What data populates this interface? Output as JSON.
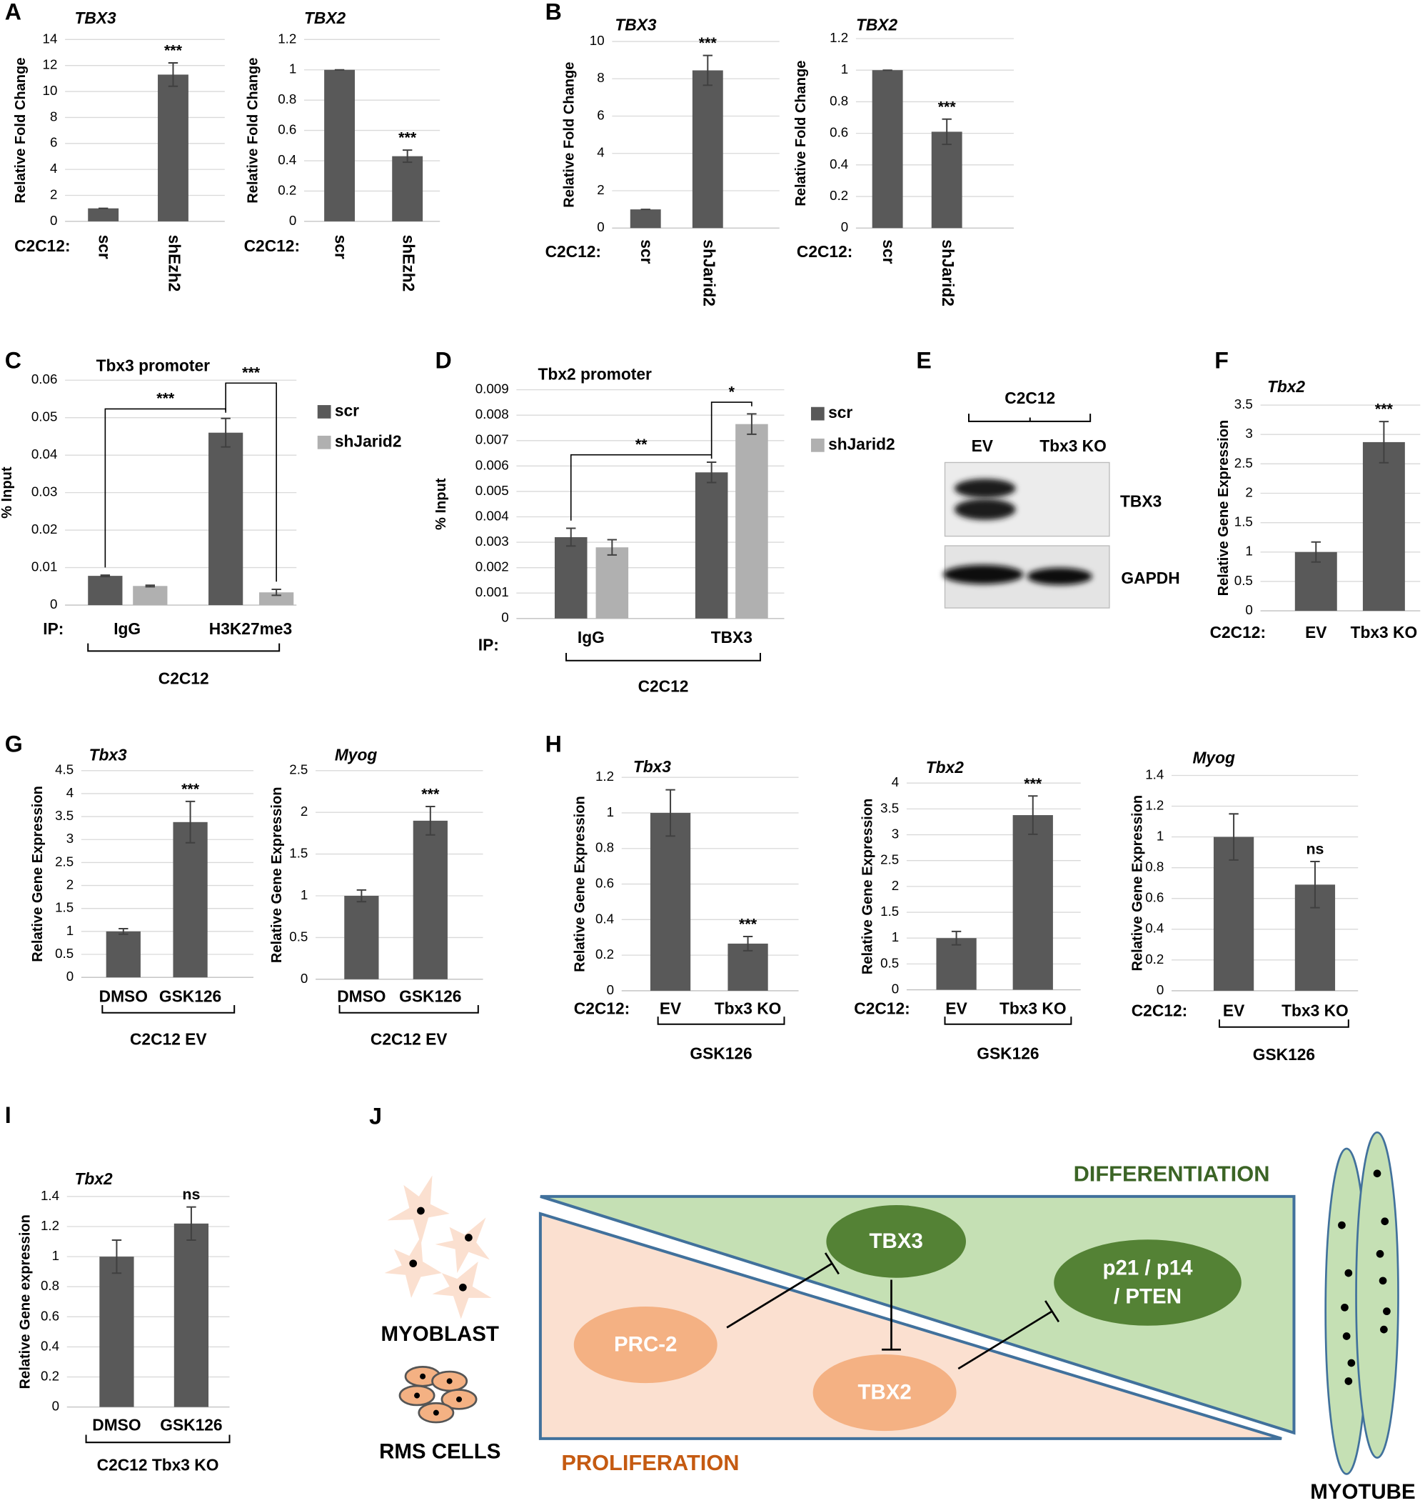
{
  "chart_data": [
    {
      "type": "bar",
      "panel": "A",
      "title": "TBX3",
      "y_label": "Relative Fold Change",
      "category_label": "C2C12:",
      "categories": [
        "scr",
        "shEzh2"
      ],
      "series": [
        {
          "color": "#595959",
          "values": [
            1,
            11.3
          ],
          "errors": [
            0,
            0.9
          ]
        }
      ],
      "significance": [
        null,
        "***"
      ],
      "ylim": [
        0,
        14
      ],
      "yticks": [
        0,
        2,
        4,
        6,
        8,
        10,
        12,
        14
      ],
      "grid": true
    },
    {
      "type": "bar",
      "title": "TBX2",
      "y_label": "Relative Fold Change",
      "category_label": "C2C12:",
      "categories": [
        "scr",
        "shEzh2"
      ],
      "series": [
        {
          "color": "#595959",
          "values": [
            1,
            0.43
          ],
          "errors": [
            0,
            0.04
          ]
        }
      ],
      "significance": [
        null,
        "***"
      ],
      "ylim": [
        0,
        1.2
      ],
      "yticks": [
        0,
        0.2,
        0.4,
        0.6,
        0.8,
        1,
        1.2
      ],
      "grid": true
    },
    {
      "type": "bar",
      "panel": "B",
      "title": "TBX3",
      "y_label": "Relative Fold Change",
      "category_label": "C2C12:",
      "categories": [
        "scr",
        "shJarid2"
      ],
      "series": [
        {
          "color": "#595959",
          "values": [
            1,
            8.45
          ],
          "errors": [
            0,
            0.8
          ]
        }
      ],
      "significance": [
        null,
        "***"
      ],
      "ylim": [
        0,
        10
      ],
      "yticks": [
        0,
        2,
        4,
        6,
        8,
        10
      ],
      "grid": true
    },
    {
      "type": "bar",
      "title": "TBX2",
      "y_label": "Relative Fold Change",
      "category_label": "C2C12:",
      "categories": [
        "scr",
        "shJarid2"
      ],
      "series": [
        {
          "color": "#595959",
          "values": [
            1,
            0.61
          ],
          "errors": [
            0,
            0.08
          ]
        }
      ],
      "significance": [
        null,
        "***"
      ],
      "ylim": [
        0,
        1.2
      ],
      "yticks": [
        0,
        0.2,
        0.4,
        0.6,
        0.8,
        1,
        1.2
      ],
      "grid": true
    },
    {
      "type": "bar",
      "panel": "C",
      "title": "Tbx3 promoter",
      "y_label": "% Input",
      "category_label": "IP:",
      "categories": [
        "IgG",
        "H3K27me3"
      ],
      "series": [
        {
          "name": "scr",
          "color": "#595959",
          "values": [
            0.0078,
            0.046
          ],
          "errors": [
            0.0002,
            0.0038
          ]
        },
        {
          "name": "shJarid2",
          "color": "#b0b0b0",
          "values": [
            0.0051,
            0.0034
          ],
          "errors": [
            0.0002,
            0.0008
          ]
        }
      ],
      "bracket_labels": [
        "***",
        "***"
      ],
      "group_label": "C2C12",
      "ylim": [
        0,
        0.06
      ],
      "yticks": [
        0,
        0.01,
        0.02,
        0.03,
        0.04,
        0.05,
        0.06
      ],
      "grid": true
    },
    {
      "type": "bar",
      "panel": "D",
      "title": "Tbx2 promoter",
      "y_label": "% Input",
      "category_label": "IP:",
      "categories": [
        "IgG",
        "TBX3"
      ],
      "series": [
        {
          "name": "scr",
          "color": "#595959",
          "values": [
            0.0032,
            0.00575
          ],
          "errors": [
            0.00035,
            0.0004
          ]
        },
        {
          "name": "shJarid2",
          "color": "#b0b0b0",
          "values": [
            0.0028,
            0.00765
          ],
          "errors": [
            0.0003,
            0.0004
          ]
        }
      ],
      "bracket_labels": [
        "**",
        "*"
      ],
      "group_label": "C2C12",
      "ylim": [
        0,
        0.009
      ],
      "yticks": [
        0,
        0.001,
        0.002,
        0.003,
        0.004,
        0.005,
        0.006,
        0.007,
        0.008,
        0.009
      ],
      "grid": true
    },
    {
      "type": "bar",
      "panel": "F",
      "title": "Tbx2",
      "y_label": "Relative Gene Expression",
      "category_label": "C2C12:",
      "categories": [
        "EV",
        "Tbx3 KO"
      ],
      "series": [
        {
          "color": "#595959",
          "values": [
            1,
            2.87
          ],
          "errors": [
            0.17,
            0.35
          ]
        }
      ],
      "significance": [
        null,
        "***"
      ],
      "ylim": [
        0,
        3.5
      ],
      "yticks": [
        0,
        0.5,
        1,
        1.5,
        2,
        2.5,
        3,
        3.5
      ],
      "grid": true
    },
    {
      "type": "bar",
      "panel": "G",
      "title": "Tbx3",
      "y_label": "Relative Gene Expression",
      "categories": [
        "DMSO",
        "GSK126"
      ],
      "series": [
        {
          "color": "#595959",
          "values": [
            1,
            3.38
          ],
          "errors": [
            0.06,
            0.45
          ]
        }
      ],
      "significance": [
        null,
        "***"
      ],
      "group_label": "C2C12 EV",
      "ylim": [
        0,
        4.5
      ],
      "yticks": [
        0,
        0.5,
        1,
        1.5,
        2,
        2.5,
        3,
        3.5,
        4,
        4.5
      ],
      "grid": true
    },
    {
      "type": "bar",
      "title": "Myog",
      "y_label": "Relative Gene Expression",
      "categories": [
        "DMSO",
        "GSK126"
      ],
      "series": [
        {
          "color": "#595959",
          "values": [
            1,
            1.9
          ],
          "errors": [
            0.07,
            0.17
          ]
        }
      ],
      "significance": [
        null,
        "***"
      ],
      "group_label": "C2C12 EV",
      "ylim": [
        0,
        2.5
      ],
      "yticks": [
        0,
        0.5,
        1,
        1.5,
        2,
        2.5
      ],
      "grid": true
    },
    {
      "type": "bar",
      "panel": "H",
      "title": "Tbx3",
      "y_label": "Relative Gene Expression",
      "category_label": "C2C12:",
      "categories": [
        "EV",
        "Tbx3 KO"
      ],
      "series": [
        {
          "color": "#595959",
          "values": [
            1,
            0.265
          ],
          "errors": [
            0.13,
            0.04
          ]
        }
      ],
      "significance": [
        null,
        "***"
      ],
      "group_label": "GSK126",
      "ylim": [
        0,
        1.2
      ],
      "yticks": [
        0,
        0.2,
        0.4,
        0.6,
        0.8,
        1,
        1.2
      ],
      "grid": true
    },
    {
      "type": "bar",
      "title": "Tbx2",
      "y_label": "Relative Gene Expression",
      "category_label": "C2C12:",
      "categories": [
        "EV",
        "Tbx3 KO"
      ],
      "series": [
        {
          "color": "#595959",
          "values": [
            1,
            3.38
          ],
          "errors": [
            0.13,
            0.37
          ]
        }
      ],
      "significance": [
        null,
        "***"
      ],
      "group_label": "GSK126",
      "ylim": [
        0,
        4
      ],
      "yticks": [
        0,
        0.5,
        1,
        1.5,
        2,
        2.5,
        3,
        3.5,
        4
      ],
      "grid": true
    },
    {
      "type": "bar",
      "title": "Myog",
      "y_label": "Relative Gene Expression",
      "category_label": "C2C12:",
      "categories": [
        "EV",
        "Tbx3 KO"
      ],
      "series": [
        {
          "color": "#595959",
          "values": [
            1,
            0.69
          ],
          "errors": [
            0.15,
            0.15
          ]
        }
      ],
      "significance": [
        null,
        "ns"
      ],
      "group_label": "GSK126",
      "ylim": [
        0,
        1.4
      ],
      "yticks": [
        0,
        0.2,
        0.4,
        0.6,
        0.8,
        1,
        1.2,
        1.4
      ],
      "grid": true
    },
    {
      "type": "bar",
      "panel": "I",
      "title": "Tbx2",
      "y_label": "Relative Gene expression",
      "categories": [
        "DMSO",
        "GSK126"
      ],
      "series": [
        {
          "color": "#595959",
          "values": [
            1,
            1.22
          ],
          "errors": [
            0.11,
            0.11
          ]
        }
      ],
      "significance": [
        null,
        "ns"
      ],
      "group_label": "C2C12 Tbx3 KO",
      "ylim": [
        0,
        1.4
      ],
      "yticks": [
        0,
        0.2,
        0.4,
        0.6,
        0.8,
        1,
        1.2,
        1.4
      ],
      "grid": true
    }
  ],
  "blot": {
    "panel": "E",
    "title": "C2C12",
    "lanes": [
      "EV",
      "Tbx3 KO"
    ],
    "bands": [
      "TBX3",
      "GAPDH"
    ]
  },
  "diagram": {
    "panel": "J",
    "top_label": "DIFFERENTIATION",
    "bottom_label": "PROLIFERATION",
    "cell_labels": [
      "MYOBLAST",
      "RMS CELLS",
      "MYOTUBE"
    ],
    "nodes": [
      [
        "TBX3"
      ],
      [
        "PRC-2"
      ],
      [
        "TBX2"
      ],
      [
        "p21 / p14",
        "/ PTEN"
      ]
    ]
  }
}
